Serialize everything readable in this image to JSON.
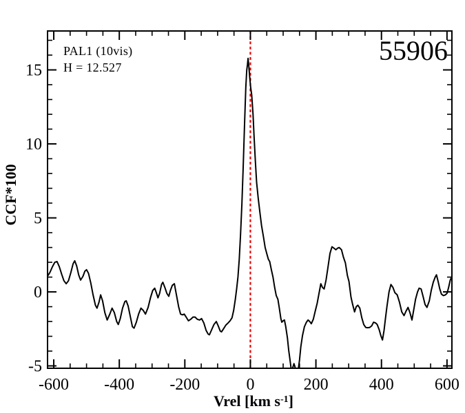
{
  "chart_data": {
    "type": "line",
    "title": "",
    "annotations": {
      "object": "PAL1 (10vis)",
      "h_magnitude": "H = 12.527",
      "epoch": "55906"
    },
    "xlabel": {
      "pre": "Vrel [km s",
      "sup": "-1",
      "post": "]"
    },
    "ylabel": "CCF*100",
    "xlim": [
      -619,
      615
    ],
    "ylim": [
      -5.16,
      17.63
    ],
    "xticks": [
      -600,
      -400,
      -200,
      0,
      200,
      400,
      600
    ],
    "yticks": [
      -5,
      0,
      5,
      10,
      15
    ],
    "x_minor_step": 50,
    "y_minor_step": 1,
    "grid": false,
    "legend": "none",
    "vline": {
      "x": 0,
      "color": "#e60000",
      "style": "dotted",
      "meaning": "zero relative velocity"
    },
    "colors": {
      "curve": "#000000",
      "frame": "#000000",
      "background": "#ffffff",
      "marker_line": "#e60000"
    },
    "peak": {
      "x": -7,
      "y": 15.78
    },
    "series": [
      {
        "name": "CCF",
        "points": [
          [
            -618,
            1.1
          ],
          [
            -612,
            1.3
          ],
          [
            -604,
            1.7
          ],
          [
            -597,
            2.0
          ],
          [
            -590,
            2.05
          ],
          [
            -583,
            1.7
          ],
          [
            -576,
            1.2
          ],
          [
            -569,
            0.75
          ],
          [
            -562,
            0.55
          ],
          [
            -555,
            0.75
          ],
          [
            -548,
            1.3
          ],
          [
            -541,
            1.9
          ],
          [
            -536,
            2.1
          ],
          [
            -530,
            1.75
          ],
          [
            -524,
            1.15
          ],
          [
            -518,
            0.8
          ],
          [
            -511,
            1.05
          ],
          [
            -505,
            1.4
          ],
          [
            -500,
            1.5
          ],
          [
            -494,
            1.25
          ],
          [
            -487,
            0.6
          ],
          [
            -480,
            -0.2
          ],
          [
            -473,
            -0.9
          ],
          [
            -468,
            -1.1
          ],
          [
            -462,
            -0.7
          ],
          [
            -457,
            -0.2
          ],
          [
            -451,
            -0.6
          ],
          [
            -444,
            -1.4
          ],
          [
            -437,
            -1.9
          ],
          [
            -429,
            -1.5
          ],
          [
            -422,
            -1.1
          ],
          [
            -415,
            -1.4
          ],
          [
            -408,
            -2.0
          ],
          [
            -403,
            -2.2
          ],
          [
            -397,
            -1.8
          ],
          [
            -390,
            -1.1
          ],
          [
            -383,
            -0.65
          ],
          [
            -379,
            -0.6
          ],
          [
            -373,
            -0.95
          ],
          [
            -366,
            -1.7
          ],
          [
            -360,
            -2.35
          ],
          [
            -355,
            -2.45
          ],
          [
            -348,
            -2.05
          ],
          [
            -341,
            -1.5
          ],
          [
            -334,
            -1.1
          ],
          [
            -327,
            -1.25
          ],
          [
            -320,
            -1.5
          ],
          [
            -312,
            -1.05
          ],
          [
            -305,
            -0.4
          ],
          [
            -298,
            0.1
          ],
          [
            -292,
            0.25
          ],
          [
            -287,
            -0.05
          ],
          [
            -282,
            -0.4
          ],
          [
            -277,
            -0.1
          ],
          [
            -271,
            0.5
          ],
          [
            -267,
            0.65
          ],
          [
            -261,
            0.3
          ],
          [
            -255,
            -0.1
          ],
          [
            -249,
            -0.3
          ],
          [
            -244,
            0.1
          ],
          [
            -238,
            0.45
          ],
          [
            -232,
            0.55
          ],
          [
            -226,
            -0.15
          ],
          [
            -219,
            -1.0
          ],
          [
            -213,
            -1.5
          ],
          [
            -207,
            -1.55
          ],
          [
            -202,
            -1.5
          ],
          [
            -196,
            -1.7
          ],
          [
            -189,
            -1.95
          ],
          [
            -182,
            -1.85
          ],
          [
            -175,
            -1.7
          ],
          [
            -169,
            -1.7
          ],
          [
            -162,
            -1.85
          ],
          [
            -155,
            -1.9
          ],
          [
            -149,
            -1.8
          ],
          [
            -142,
            -2.1
          ],
          [
            -135,
            -2.6
          ],
          [
            -129,
            -2.85
          ],
          [
            -125,
            -2.9
          ],
          [
            -118,
            -2.55
          ],
          [
            -111,
            -2.2
          ],
          [
            -104,
            -2.0
          ],
          [
            -98,
            -2.3
          ],
          [
            -92,
            -2.65
          ],
          [
            -88,
            -2.7
          ],
          [
            -82,
            -2.5
          ],
          [
            -75,
            -2.25
          ],
          [
            -68,
            -2.1
          ],
          [
            -62,
            -1.95
          ],
          [
            -56,
            -1.75
          ],
          [
            -51,
            -1.25
          ],
          [
            -46,
            -0.5
          ],
          [
            -42,
            0.2
          ],
          [
            -38,
            1.0
          ],
          [
            -34,
            2.2
          ],
          [
            -30,
            3.9
          ],
          [
            -26,
            5.9
          ],
          [
            -22,
            8.4
          ],
          [
            -18,
            11.2
          ],
          [
            -14,
            13.8
          ],
          [
            -11,
            15.0
          ],
          [
            -9,
            15.35
          ],
          [
            -7,
            15.78
          ],
          [
            -5,
            15.3
          ],
          [
            -2,
            14.5
          ],
          [
            1,
            13.8
          ],
          [
            4,
            13.3
          ],
          [
            8,
            12.0
          ],
          [
            11,
            10.6
          ],
          [
            15,
            8.9
          ],
          [
            19,
            7.4
          ],
          [
            24,
            6.3
          ],
          [
            29,
            5.4
          ],
          [
            34,
            4.5
          ],
          [
            40,
            3.7
          ],
          [
            45,
            3.0
          ],
          [
            50,
            2.6
          ],
          [
            55,
            2.2
          ],
          [
            59,
            2.05
          ],
          [
            64,
            1.5
          ],
          [
            69,
            1.0
          ],
          [
            74,
            0.3
          ],
          [
            79,
            -0.25
          ],
          [
            84,
            -0.5
          ],
          [
            88,
            -1.05
          ],
          [
            93,
            -1.8
          ],
          [
            96,
            -2.05
          ],
          [
            100,
            -1.95
          ],
          [
            104,
            -1.9
          ],
          [
            108,
            -2.35
          ],
          [
            113,
            -3.1
          ],
          [
            117,
            -3.95
          ],
          [
            121,
            -4.6
          ],
          [
            125,
            -5.3
          ],
          [
            129,
            -5.15
          ],
          [
            133,
            -4.85
          ],
          [
            136,
            -5.05
          ],
          [
            140,
            -5.5
          ],
          [
            145,
            -5.45
          ],
          [
            150,
            -4.6
          ],
          [
            154,
            -3.7
          ],
          [
            159,
            -2.95
          ],
          [
            165,
            -2.35
          ],
          [
            171,
            -2.05
          ],
          [
            176,
            -1.9
          ],
          [
            181,
            -2.0
          ],
          [
            186,
            -2.15
          ],
          [
            192,
            -1.85
          ],
          [
            198,
            -1.3
          ],
          [
            204,
            -0.75
          ],
          [
            210,
            -0.05
          ],
          [
            215,
            0.55
          ],
          [
            220,
            0.3
          ],
          [
            225,
            0.2
          ],
          [
            231,
            0.8
          ],
          [
            237,
            1.7
          ],
          [
            243,
            2.6
          ],
          [
            249,
            3.05
          ],
          [
            255,
            2.95
          ],
          [
            261,
            2.85
          ],
          [
            266,
            2.95
          ],
          [
            271,
            3.0
          ],
          [
            278,
            2.85
          ],
          [
            284,
            2.35
          ],
          [
            290,
            1.95
          ],
          [
            296,
            1.1
          ],
          [
            301,
            0.7
          ],
          [
            307,
            -0.35
          ],
          [
            312,
            -0.85
          ],
          [
            318,
            -1.35
          ],
          [
            323,
            -1.0
          ],
          [
            328,
            -0.9
          ],
          [
            334,
            -1.1
          ],
          [
            340,
            -1.75
          ],
          [
            346,
            -2.2
          ],
          [
            352,
            -2.4
          ],
          [
            358,
            -2.42
          ],
          [
            364,
            -2.4
          ],
          [
            370,
            -2.3
          ],
          [
            376,
            -2.05
          ],
          [
            382,
            -2.1
          ],
          [
            387,
            -2.2
          ],
          [
            393,
            -2.55
          ],
          [
            398,
            -2.95
          ],
          [
            403,
            -3.25
          ],
          [
            408,
            -2.6
          ],
          [
            412,
            -1.85
          ],
          [
            417,
            -0.95
          ],
          [
            423,
            0.0
          ],
          [
            429,
            0.5
          ],
          [
            435,
            0.3
          ],
          [
            441,
            -0.05
          ],
          [
            448,
            -0.2
          ],
          [
            455,
            -0.7
          ],
          [
            462,
            -1.35
          ],
          [
            469,
            -1.6
          ],
          [
            475,
            -1.3
          ],
          [
            481,
            -1.05
          ],
          [
            487,
            -1.4
          ],
          [
            493,
            -1.9
          ],
          [
            499,
            -1.15
          ],
          [
            504,
            -0.5
          ],
          [
            510,
            0.0
          ],
          [
            515,
            0.25
          ],
          [
            521,
            0.2
          ],
          [
            527,
            -0.3
          ],
          [
            533,
            -0.85
          ],
          [
            539,
            -1.05
          ],
          [
            546,
            -0.6
          ],
          [
            552,
            0.1
          ],
          [
            558,
            0.65
          ],
          [
            564,
            1.0
          ],
          [
            568,
            1.15
          ],
          [
            573,
            0.7
          ],
          [
            578,
            0.2
          ],
          [
            583,
            -0.15
          ],
          [
            589,
            -0.25
          ],
          [
            595,
            -0.2
          ],
          [
            600,
            -0.1
          ],
          [
            605,
            0.3
          ],
          [
            610,
            0.8
          ],
          [
            614,
            1.0
          ]
        ]
      }
    ]
  }
}
